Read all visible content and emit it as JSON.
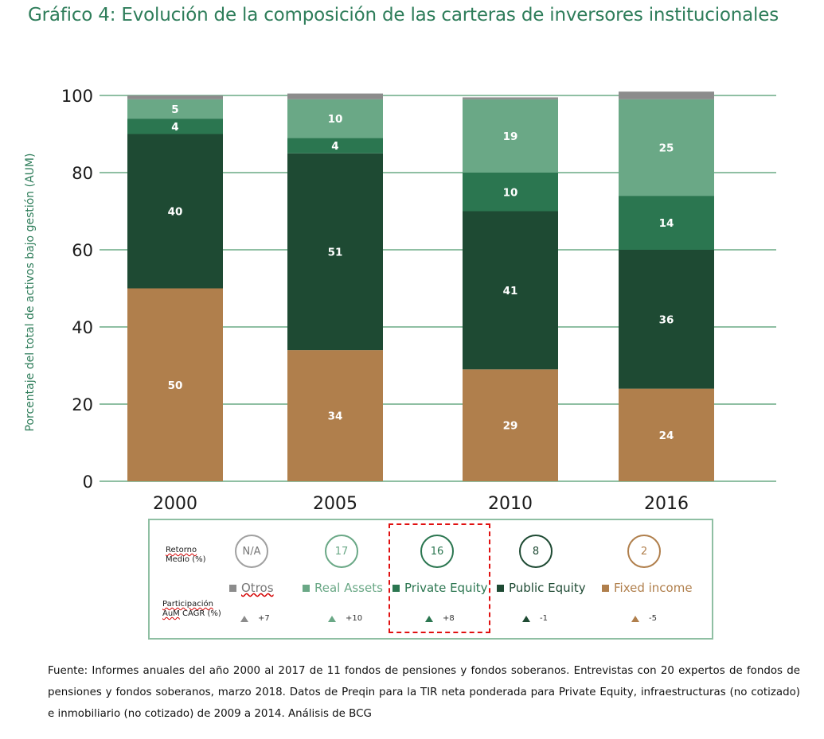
{
  "title": "Gráfico 4: Evolución de la composición de las carteras de inversores institucionales",
  "colors": {
    "otros": "#8c8c8c",
    "real_assets": "#6aa886",
    "private_equity": "#2b7650",
    "public_equity": "#1e4a33",
    "fixed_income": "#b07f4c",
    "grid": "#8fbfa3",
    "accent": "#2e7d5a"
  },
  "chart_data": {
    "type": "bar",
    "stacked": true,
    "title": "",
    "xlabel": "",
    "ylabel": "Porcentaje del total de activos bajo gestión (AUM)",
    "ylim": [
      0,
      100
    ],
    "yticks": [
      0,
      20,
      40,
      60,
      80,
      100
    ],
    "grid": true,
    "categories": [
      "2000",
      "2005",
      "2010",
      "2016"
    ],
    "series": [
      {
        "name": "Fixed income",
        "color": "#b07f4c",
        "values": [
          50,
          34,
          29,
          24
        ],
        "labels": [
          "50",
          "34",
          "29",
          "24"
        ]
      },
      {
        "name": "Public Equity",
        "color": "#1e4a33",
        "values": [
          40,
          51,
          41,
          36
        ],
        "labels": [
          "40",
          "51",
          "41",
          "36"
        ]
      },
      {
        "name": "Private Equity",
        "color": "#2b7650",
        "values": [
          4,
          4,
          10,
          14
        ],
        "labels": [
          "4",
          "4",
          "10",
          "14"
        ]
      },
      {
        "name": "Real Assets",
        "color": "#6aa886",
        "values": [
          5,
          10,
          19,
          25
        ],
        "labels": [
          "5",
          "10",
          "19",
          "25"
        ]
      },
      {
        "name": "Otros",
        "color": "#8c8c8c",
        "values": [
          1,
          1.5,
          0.5,
          2
        ],
        "labels": [
          "",
          "",
          "",
          ""
        ]
      }
    ]
  },
  "legend": {
    "row1_label_line1": "Retorno",
    "row1_label_line2": "Medio (%)",
    "row2_label_line1": "Participación",
    "row2_label_line2a": "AuM",
    "row2_label_line2b": " CAGR (%)",
    "items": [
      {
        "name": "Otros",
        "return": "N/A",
        "cagr": "+7",
        "color": "#8c8c8c",
        "circle_color": "#a0a0a0",
        "text_color": "#777777"
      },
      {
        "name": "Real Assets",
        "return": "17",
        "cagr": "+10",
        "color": "#6aa886",
        "circle_color": "#6aa886",
        "text_color": "#6aa886"
      },
      {
        "name": "Private Equity",
        "return": "16",
        "cagr": "+8",
        "color": "#2b7650",
        "circle_color": "#2b7650",
        "text_color": "#2b7650"
      },
      {
        "name": "Public Equity",
        "return": "8",
        "cagr": "-1",
        "color": "#1e4a33",
        "circle_color": "#1e4a33",
        "text_color": "#1e4a33"
      },
      {
        "name": "Fixed income",
        "return": "2",
        "cagr": "-5",
        "color": "#b07f4c",
        "circle_color": "#b07f4c",
        "text_color": "#b07f4c"
      }
    ]
  },
  "source": "Fuente: Informes anuales del año 2000 al 2017 de 11 fondos de pensiones y fondos soberanos. Entrevistas con 20 expertos de fondos de pensiones y fondos soberanos, marzo 2018. Datos de Preqin para la TIR neta ponderada para Private Equity, infraestructuras (no cotizado) e inmobiliario (no cotizado) de 2009 a 2014. Análisis de BCG"
}
